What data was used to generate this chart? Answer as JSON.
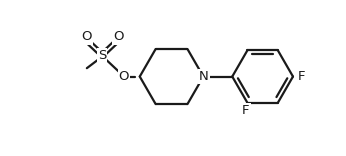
{
  "bg_color": "#ffffff",
  "line_color": "#1a1a1a",
  "line_width": 1.6,
  "font_size": 9.5,
  "fig_width": 3.46,
  "fig_height": 1.56,
  "dpi": 100,
  "xlim": [
    -1.0,
    9.5
  ],
  "ylim": [
    -0.5,
    4.8
  ]
}
